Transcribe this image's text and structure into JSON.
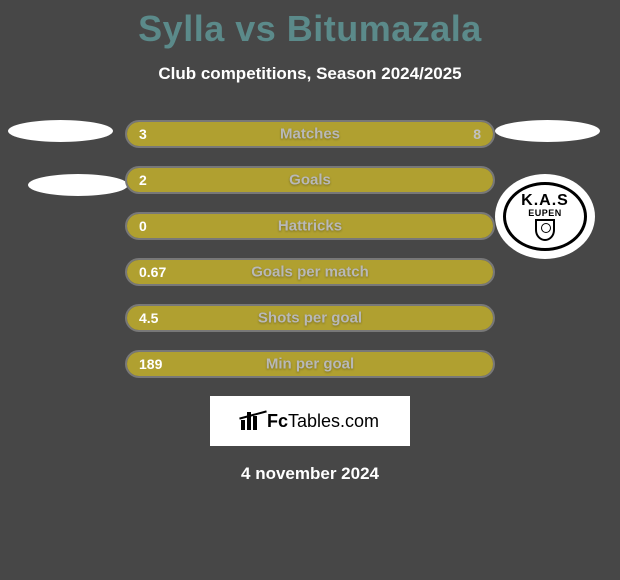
{
  "title": "Sylla vs Bitumazala",
  "subtitle": "Club competitions, Season 2024/2025",
  "date": "4 november 2024",
  "branding": {
    "prefix": "Fc",
    "suffix": "Tables.com"
  },
  "club": {
    "line1": "K.A.S",
    "line2": "EUPEN"
  },
  "colors": {
    "background": "#474747",
    "bar_fill": "#b0a030",
    "bar_border": "#787878",
    "title": "#5b8a8a",
    "text_light": "#ffffff",
    "text_mid": "#b8b8b8",
    "text_dim": "#c0c0c0"
  },
  "bars": [
    {
      "label": "Matches",
      "left": "3",
      "right": "8",
      "fill_left_pct": 27,
      "fill_right_pct": 73
    },
    {
      "label": "Goals",
      "left": "2",
      "right": "",
      "fill_left_pct": 100,
      "fill_right_pct": 0
    },
    {
      "label": "Hattricks",
      "left": "0",
      "right": "",
      "fill_left_pct": 100,
      "fill_right_pct": 0
    },
    {
      "label": "Goals per match",
      "left": "0.67",
      "right": "",
      "fill_left_pct": 100,
      "fill_right_pct": 0
    },
    {
      "label": "Shots per goal",
      "left": "4.5",
      "right": "",
      "fill_left_pct": 100,
      "fill_right_pct": 0
    },
    {
      "label": "Min per goal",
      "left": "189",
      "right": "",
      "fill_left_pct": 100,
      "fill_right_pct": 0
    }
  ]
}
